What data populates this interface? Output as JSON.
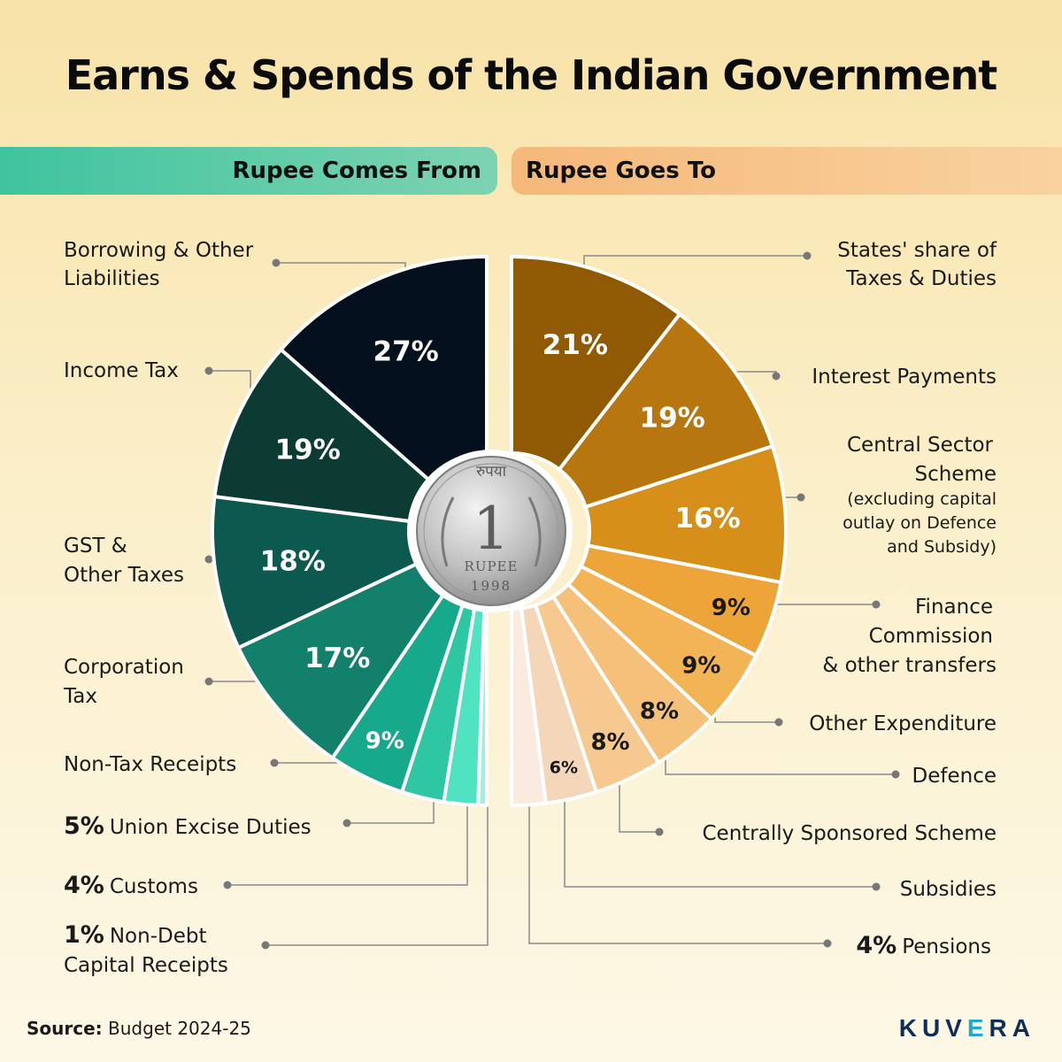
{
  "title": "Earns & Spends of the Indian Government",
  "banners": {
    "left": "Rupee Comes From",
    "right": "Rupee Goes To"
  },
  "chart_data": {
    "type": "pie",
    "charts": [
      {
        "name": "Rupee Comes From",
        "categories": [
          "Borrowing & Other Liabilities",
          "Income Tax",
          "GST & Other Taxes",
          "Corporation Tax",
          "Non-Tax Receipts",
          "Union Excise Duties",
          "Customs",
          "Non-Debt Capital Receipts"
        ],
        "values": [
          27,
          19,
          18,
          17,
          9,
          5,
          4,
          1
        ],
        "colors": [
          "#04101e",
          "#0c3b34",
          "#0c5a4f",
          "#13806b",
          "#16a98c",
          "#2dc7a4",
          "#4fe3c2",
          "#9ff1dd"
        ]
      },
      {
        "name": "Rupee Goes To",
        "categories": [
          "States' share of Taxes & Duties",
          "Interest Payments",
          "Central Sector Scheme (excluding capital outlay on Defence and Subsidy)",
          "Finance Commission & other transfers",
          "Other Expenditure",
          "Defence",
          "Centrally Sponsored Scheme",
          "Subsidies",
          "Pensions"
        ],
        "values": [
          21,
          19,
          16,
          9,
          9,
          8,
          8,
          6,
          4
        ],
        "colors": [
          "#8f5a03",
          "#b8770e",
          "#d68f18",
          "#eda53a",
          "#f2b455",
          "#f4c07a",
          "#f5c98f",
          "#f4d6b9",
          "#faeadf"
        ]
      }
    ]
  },
  "left_labels": {
    "borrowing": [
      "Borrowing & Other",
      "Liabilities"
    ],
    "income_tax": "Income Tax",
    "gst": [
      "GST &",
      "Other Taxes"
    ],
    "corporation": [
      "Corporation",
      "Tax"
    ],
    "non_tax": "Non-Tax Receipts",
    "excise": {
      "pct": "5%",
      "name": "Union Excise Duties"
    },
    "customs": {
      "pct": "4%",
      "name": "Customs"
    },
    "non_debt": {
      "pct": "1%",
      "name": "Non-Debt",
      "name2": "Capital Receipts"
    }
  },
  "right_labels": {
    "states": [
      "States' share of",
      "Taxes & Duties"
    ],
    "interest": "Interest Payments",
    "central": [
      "Central Sector",
      "Scheme"
    ],
    "central_note": [
      "(excluding capital",
      "outlay on Defence",
      "and Subsidy)"
    ],
    "finance": [
      "Finance",
      "Commission",
      "& other transfers"
    ],
    "other": "Other Expenditure",
    "defence": "Defence",
    "css": "Centrally Sponsored Scheme",
    "subsidies": "Subsidies",
    "pensions": {
      "pct": "4%",
      "name": "Pensions"
    }
  },
  "coin": {
    "top_text": "रुपया",
    "numeral": "1",
    "word": "RUPEE",
    "year": "1998"
  },
  "source": {
    "label": "Source:",
    "value": "Budget 2024-25"
  },
  "brand": {
    "pre": "KUV",
    "e": "E",
    "post": "RA"
  }
}
